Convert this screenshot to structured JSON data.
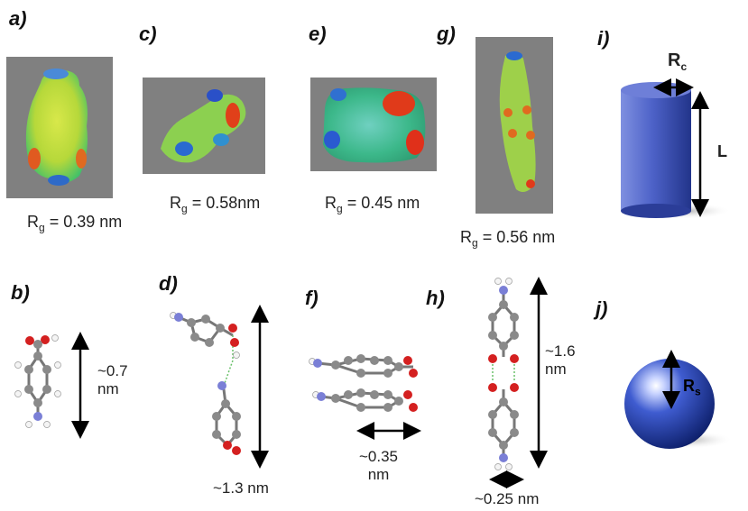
{
  "panels": {
    "a": {
      "letter": "a)",
      "rg_label": "R",
      "rg_sub": "g",
      "rg_value": " = 0.39 nm"
    },
    "b": {
      "letter": "b)",
      "dim_value": "~0.7",
      "dim_unit": "nm"
    },
    "c": {
      "letter": "c)",
      "rg_label": "R",
      "rg_sub": "g",
      "rg_value": " = 0.58nm"
    },
    "d": {
      "letter": "d)",
      "dim_text": "~1.3 nm"
    },
    "e": {
      "letter": "e)",
      "rg_label": "R",
      "rg_sub": "g",
      "rg_value": " = 0.45 nm"
    },
    "f": {
      "letter": "f)",
      "dim_value": "~0.35",
      "dim_unit": "nm"
    },
    "g": {
      "letter": "g)",
      "rg_label": "R",
      "rg_sub": "g",
      "rg_value": " = 0.56 nm"
    },
    "h": {
      "letter": "h)",
      "dim_value": "~1.6",
      "dim_unit": "nm",
      "width_text": "~0.25 nm"
    },
    "i": {
      "letter": "i)",
      "radius_label": "R",
      "radius_sub": "c",
      "length_label": "L"
    },
    "j": {
      "letter": "j)",
      "radius_label": "R",
      "radius_sub": "s"
    }
  },
  "colors": {
    "atom_carbon": "#8a8a8a",
    "atom_oxygen": "#d42020",
    "atom_nitrogen": "#7a7fd6",
    "atom_hydrogen": "#f4f4f4",
    "map_background": "#808080",
    "cylinder_blue": "#3b4fb8",
    "sphere_blue": "#1f3aa0"
  }
}
